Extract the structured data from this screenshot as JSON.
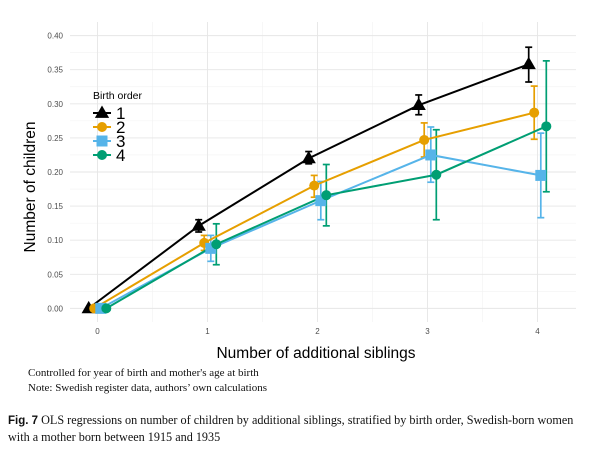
{
  "chart_data": {
    "type": "line",
    "xlabel": "Number of additional siblings",
    "ylabel": "Number of children",
    "x": [
      0,
      1,
      2,
      3,
      4
    ],
    "xticks": [
      "0",
      "1",
      "2",
      "3",
      "4"
    ],
    "ylim": [
      0,
      0.4
    ],
    "yticks": [
      "0.00",
      "0.05",
      "0.10",
      "0.15",
      "0.20",
      "0.25",
      "0.30",
      "0.35",
      "0.40"
    ],
    "grid": true,
    "legend": {
      "title": "Birth order",
      "placement": "left"
    },
    "series": [
      {
        "name": "1",
        "color": "#000000",
        "marker": "triangle",
        "dodge": -0.08,
        "values": [
          0.0,
          0.121,
          0.22,
          0.298,
          0.358
        ],
        "lower": [
          null,
          0.112,
          0.212,
          0.284,
          0.332
        ],
        "upper": [
          null,
          0.13,
          0.23,
          0.313,
          0.383
        ]
      },
      {
        "name": "2",
        "color": "#E69F00",
        "marker": "circle",
        "dodge": -0.03,
        "values": [
          0.0,
          0.096,
          0.18,
          0.247,
          0.287
        ],
        "lower": [
          null,
          0.085,
          0.163,
          0.222,
          0.248
        ],
        "upper": [
          null,
          0.107,
          0.195,
          0.272,
          0.326
        ]
      },
      {
        "name": "3",
        "color": "#56B4E9",
        "marker": "square",
        "dodge": 0.03,
        "values": [
          0.0,
          0.088,
          0.158,
          0.225,
          0.195
        ],
        "lower": [
          null,
          0.069,
          0.13,
          0.185,
          0.133
        ],
        "upper": [
          null,
          0.107,
          0.186,
          0.266,
          0.257
        ]
      },
      {
        "name": "4",
        "color": "#009E73",
        "marker": "circle",
        "dodge": 0.08,
        "values": [
          0.0,
          0.094,
          0.166,
          0.196,
          0.267
        ],
        "lower": [
          null,
          0.064,
          0.121,
          0.13,
          0.171
        ],
        "upper": [
          null,
          0.124,
          0.211,
          0.262,
          0.363
        ]
      }
    ]
  },
  "notes": {
    "line1": "Controlled for year of birth and mother's age at birth",
    "line2": "Note: Swedish register data, authors’ own calculations"
  },
  "caption": {
    "label": "Fig. 7",
    "text": "OLS regressions on number of children by additional siblings, stratified by birth order, Swedish-born women with a mother born between 1915 and 1935"
  }
}
